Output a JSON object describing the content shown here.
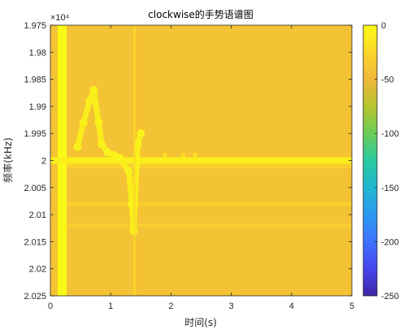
{
  "chart_data": {
    "type": "heatmap",
    "title": "clockwise的手势语谱图",
    "xlabel": "时间(s)",
    "ylabel": "频率(kHz)",
    "xlim": [
      0,
      5
    ],
    "ylim": [
      19750,
      20250
    ],
    "y_reversed": true,
    "y_exponent_label": "×10⁴",
    "x_ticks": [
      0,
      1,
      2,
      3,
      4,
      5
    ],
    "x_tick_labels": [
      "0",
      "1",
      "2",
      "3",
      "4",
      "5"
    ],
    "y_ticks": [
      19750,
      19800,
      19850,
      19900,
      19950,
      20000,
      20050,
      20100,
      20150,
      20200,
      20250
    ],
    "y_tick_labels": [
      "1.975",
      "1.98",
      "1.985",
      "1.99",
      "1.995",
      "2",
      "2.005",
      "2.01",
      "2.015",
      "2.02",
      "2.025"
    ],
    "colorbar": {
      "range": [
        -250,
        0
      ],
      "ticks": [
        0,
        -50,
        -100,
        -150,
        -200,
        -250
      ],
      "tick_labels": [
        "0",
        "-50",
        "-100",
        "-150",
        "-200",
        "-250"
      ],
      "colormap": [
        "#3e26a8",
        "#4746eb",
        "#3e72ff",
        "#2c99f1",
        "#1fb7d0",
        "#2bc9a0",
        "#6ccd5a",
        "#b6c52d",
        "#f0b83a",
        "#fbd62b",
        "#f9fb14"
      ]
    },
    "background_level": -42,
    "features": [
      {
        "kind": "vertical_band",
        "x": [
          0.12,
          0.27
        ],
        "level": -2
      },
      {
        "kind": "horizontal_line",
        "y": 20000,
        "thickness": 8,
        "x": [
          0,
          5
        ],
        "level": -8
      },
      {
        "kind": "horizontal_line",
        "y": 20010,
        "thickness": 6,
        "x": [
          0.27,
          5
        ],
        "level": -30
      },
      {
        "kind": "horizontal_line",
        "y": 20080,
        "thickness": 5,
        "x": [
          0.27,
          5
        ],
        "level": -30
      },
      {
        "kind": "horizontal_line",
        "y": 20120,
        "thickness": 5,
        "x": [
          0.27,
          5
        ],
        "level": -32
      },
      {
        "kind": "blob_path",
        "level": -6,
        "points": [
          [
            0.45,
            19975
          ],
          [
            0.55,
            19930
          ],
          [
            0.65,
            19890
          ],
          [
            0.72,
            19870
          ],
          [
            0.8,
            19930
          ],
          [
            0.85,
            19970
          ],
          [
            0.95,
            19985
          ],
          [
            1.05,
            19990
          ],
          [
            1.15,
            19995
          ],
          [
            1.3,
            20020
          ],
          [
            1.35,
            20080
          ],
          [
            1.38,
            20130
          ],
          [
            1.45,
            19970
          ],
          [
            1.5,
            19950
          ]
        ]
      },
      {
        "kind": "vertical_band",
        "x": [
          1.38,
          1.41
        ],
        "level": -22
      },
      {
        "kind": "dots",
        "y": 19990,
        "x": [
          1.9,
          2.2,
          2.4
        ],
        "level": -20
      }
    ]
  }
}
